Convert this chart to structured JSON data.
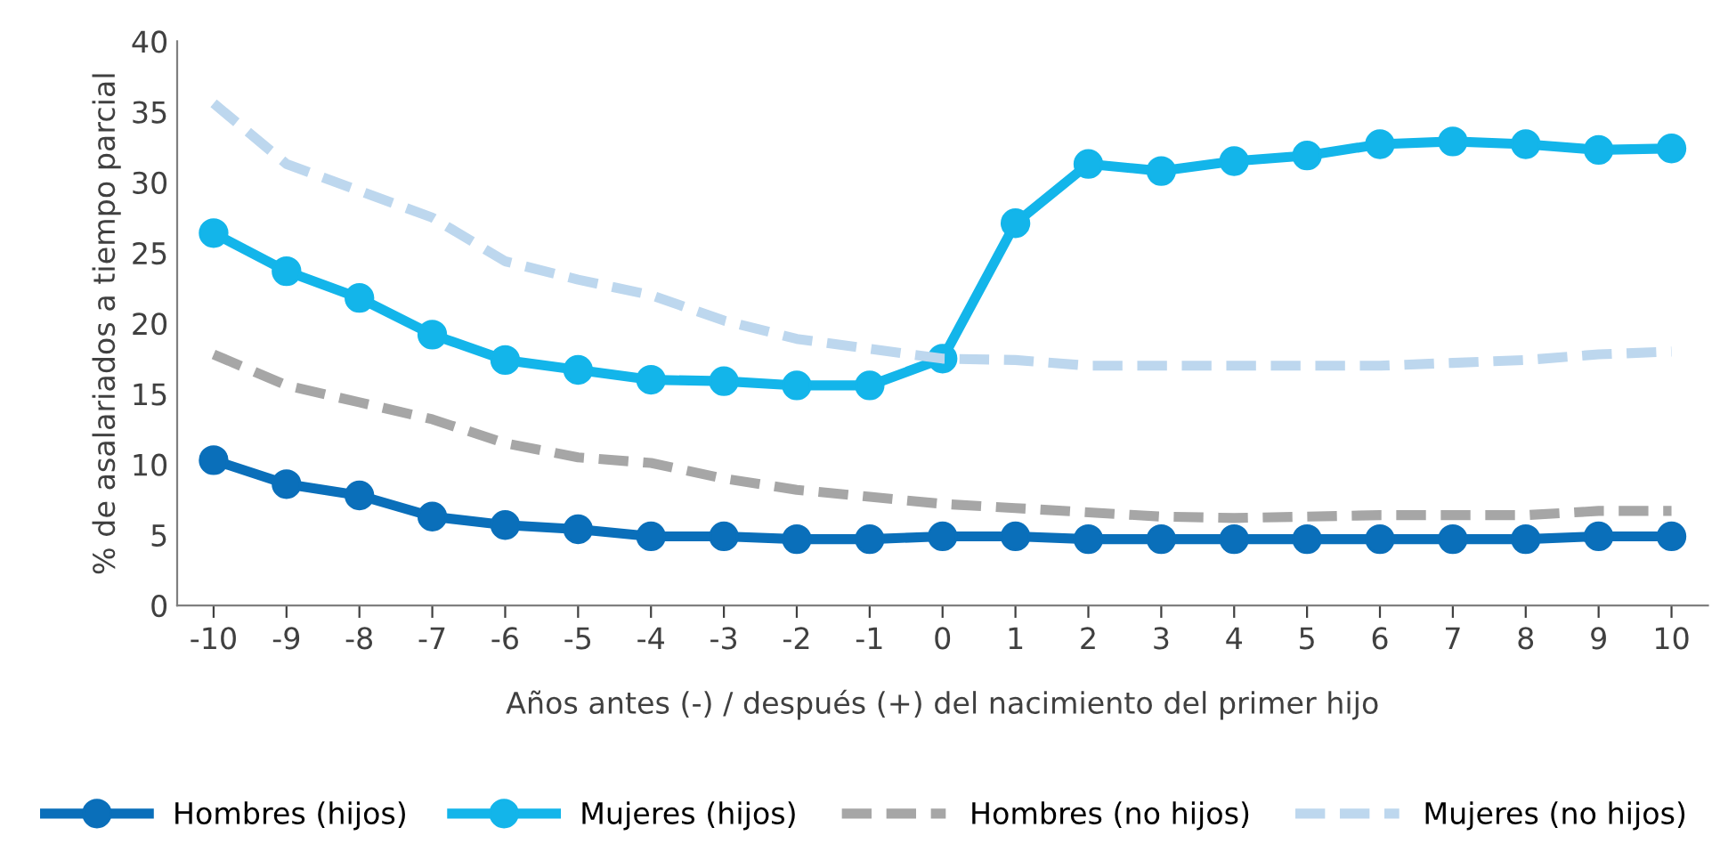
{
  "chart_data": {
    "type": "line",
    "xlabel": "Años antes (-) / después (+) del nacimiento del primer hijo",
    "ylabel": "% de asalariados a tiempo parcial",
    "categories": [
      "-10",
      "-9",
      "-8",
      "-7",
      "-6",
      "-5",
      "-4",
      "-3",
      "-2",
      "-1",
      "0",
      "1",
      "2",
      "3",
      "4",
      "5",
      "6",
      "7",
      "8",
      "9",
      "10"
    ],
    "ylim": [
      0,
      40
    ],
    "yticks": [
      0,
      5,
      10,
      15,
      20,
      25,
      30,
      35,
      40
    ],
    "grid": false,
    "legend": "bottom",
    "series": [
      {
        "name": "Hombres (hijos)",
        "color": "#0a6fba",
        "marker": "circle",
        "line_style": "solid",
        "values": [
          10.3,
          8.6,
          7.8,
          6.3,
          5.7,
          5.4,
          4.9,
          4.9,
          4.7,
          4.7,
          4.9,
          4.9,
          4.7,
          4.7,
          4.7,
          4.7,
          4.7,
          4.7,
          4.7,
          4.9,
          4.9
        ]
      },
      {
        "name": "Mujeres (hijos)",
        "color": "#13b5ea",
        "marker": "circle",
        "line_style": "solid",
        "values": [
          26.4,
          23.7,
          21.8,
          19.2,
          17.4,
          16.7,
          16.0,
          15.9,
          15.6,
          15.6,
          17.5,
          27.1,
          31.3,
          30.8,
          31.5,
          31.9,
          32.7,
          32.9,
          32.7,
          32.3,
          32.4
        ]
      },
      {
        "name": "Hombres (no hijos)",
        "color": "#a6a6a6",
        "marker": "none",
        "line_style": "dashed",
        "values": [
          17.8,
          15.6,
          14.4,
          13.2,
          11.5,
          10.5,
          10.1,
          9.0,
          8.2,
          7.7,
          7.2,
          6.9,
          6.6,
          6.3,
          6.2,
          6.3,
          6.4,
          6.4,
          6.4,
          6.7,
          6.7
        ]
      },
      {
        "name": "Mujeres (no hijos)",
        "color": "#bdd7ee",
        "marker": "none",
        "line_style": "dashed",
        "values": [
          35.6,
          31.3,
          29.4,
          27.5,
          24.4,
          23.1,
          22.0,
          20.2,
          18.9,
          18.2,
          17.5,
          17.4,
          17.0,
          17.0,
          17.0,
          17.0,
          17.0,
          17.2,
          17.4,
          17.8,
          18.0
        ]
      }
    ]
  }
}
